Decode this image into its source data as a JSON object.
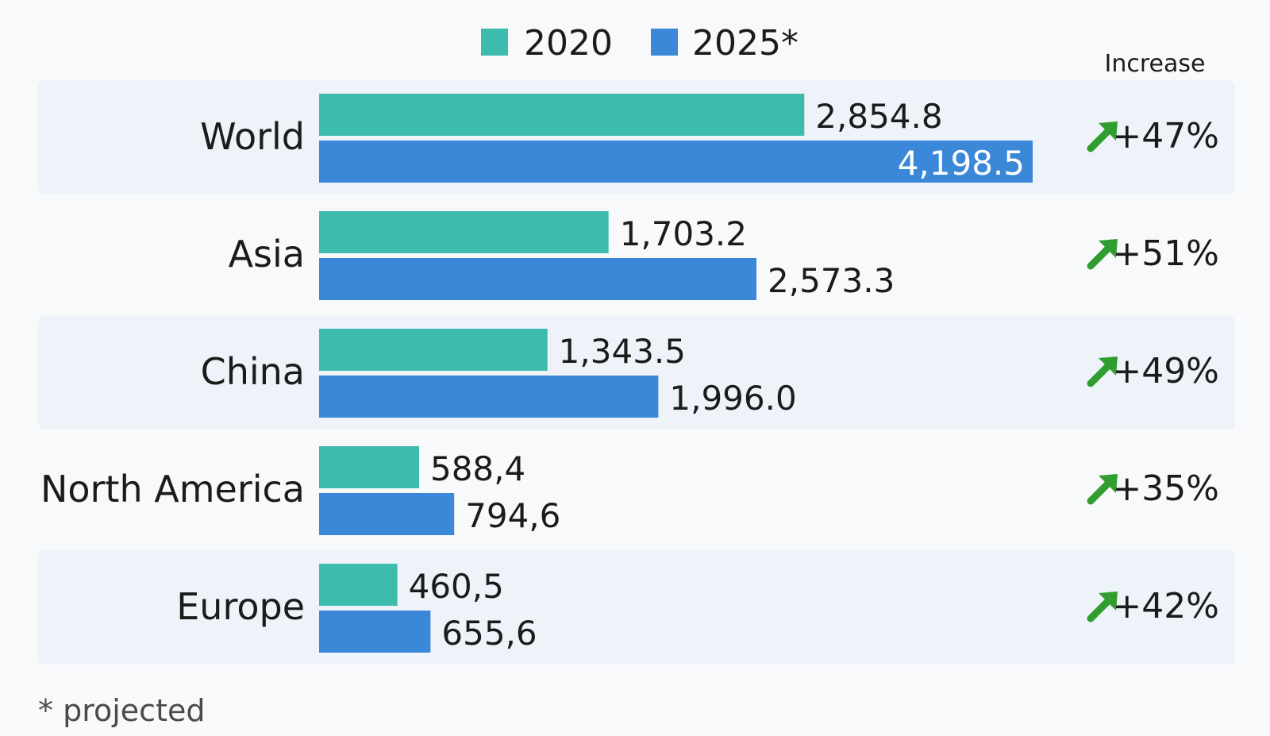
{
  "legend": {
    "series_2020": "2020",
    "series_2025": "2025*"
  },
  "increase_header": "Increase",
  "footnote": "* projected",
  "colors": {
    "series_2020": "#3dbbad",
    "series_2025": "#3b87d8",
    "row_band": "#eef3fa",
    "arrow": "#2f9e2f"
  },
  "chart_data": {
    "type": "bar",
    "orientation": "horizontal",
    "categories": [
      "World",
      "Asia",
      "China",
      "North America",
      "Europe"
    ],
    "series": [
      {
        "name": "2020",
        "values": [
          2854.8,
          1703.2,
          1343.5,
          588.4,
          460.5
        ],
        "labels": [
          "2,854.8",
          "1,703.2",
          "1,343.5",
          "588,4",
          "460,5"
        ]
      },
      {
        "name": "2025*",
        "values": [
          4198.5,
          2573.3,
          1996.0,
          794.6,
          655.6
        ],
        "labels": [
          "4,198.5",
          "2,573.3",
          "1,996.0",
          "794,6",
          "655,6"
        ]
      }
    ],
    "increase": [
      "+47%",
      "+51%",
      "+49%",
      "+35%",
      "+42%"
    ],
    "xlim": [
      0,
      4198.5
    ],
    "legend_position": "top-center",
    "grid": false
  }
}
